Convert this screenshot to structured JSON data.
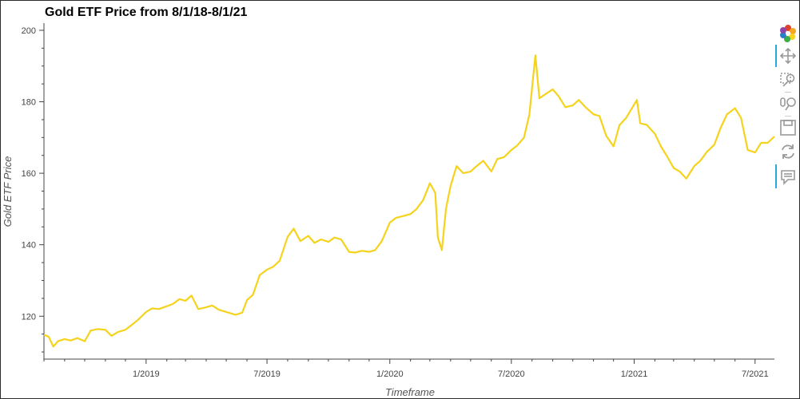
{
  "chart_data": {
    "type": "line",
    "title": "Gold ETF Price from 8/1/18-8/1/21",
    "xlabel": "Timeframe",
    "ylabel": "Gold ETF Price",
    "x_tick_labels": [
      "1/2019",
      "7/2019",
      "1/2020",
      "7/2020",
      "1/2021",
      "7/2021"
    ],
    "x_tick_dates": [
      "2019-01-01",
      "2019-07-01",
      "2020-01-01",
      "2020-07-01",
      "2021-01-01",
      "2021-07-01"
    ],
    "y_ticks": [
      120,
      140,
      160,
      180,
      200
    ],
    "xlim": [
      "2018-08-01",
      "2021-07-30"
    ],
    "ylim": [
      108,
      202
    ],
    "grid": false,
    "line_color": "#f5d31c",
    "series": [
      {
        "x": [
          "2018-08-01",
          "2018-08-08",
          "2018-08-15",
          "2018-08-22",
          "2018-09-01",
          "2018-09-10",
          "2018-09-20",
          "2018-10-01",
          "2018-10-10",
          "2018-10-20",
          "2018-11-01",
          "2018-11-10",
          "2018-11-20",
          "2018-12-01",
          "2018-12-10",
          "2018-12-20",
          "2019-01-01",
          "2019-01-10",
          "2019-01-20",
          "2019-02-01",
          "2019-02-10",
          "2019-02-20",
          "2019-03-01",
          "2019-03-10",
          "2019-03-20",
          "2019-04-01",
          "2019-04-10",
          "2019-04-20",
          "2019-05-01",
          "2019-05-15",
          "2019-05-25",
          "2019-06-01",
          "2019-06-10",
          "2019-06-20",
          "2019-07-01",
          "2019-07-10",
          "2019-07-20",
          "2019-08-01",
          "2019-08-10",
          "2019-08-20",
          "2019-09-01",
          "2019-09-10",
          "2019-09-20",
          "2019-10-01",
          "2019-10-10",
          "2019-10-20",
          "2019-11-01",
          "2019-11-10",
          "2019-11-20",
          "2019-12-01",
          "2019-12-10",
          "2019-12-20",
          "2020-01-01",
          "2020-01-10",
          "2020-01-20",
          "2020-02-01",
          "2020-02-10",
          "2020-02-20",
          "2020-03-01",
          "2020-03-09",
          "2020-03-13",
          "2020-03-19",
          "2020-03-25",
          "2020-04-01",
          "2020-04-10",
          "2020-04-20",
          "2020-05-01",
          "2020-05-10",
          "2020-05-20",
          "2020-06-01",
          "2020-06-10",
          "2020-06-20",
          "2020-07-01",
          "2020-07-10",
          "2020-07-20",
          "2020-07-28",
          "2020-08-06",
          "2020-08-12",
          "2020-08-20",
          "2020-09-01",
          "2020-09-10",
          "2020-09-20",
          "2020-10-01",
          "2020-10-10",
          "2020-10-20",
          "2020-11-01",
          "2020-11-10",
          "2020-11-20",
          "2020-12-01",
          "2020-12-10",
          "2020-12-20",
          "2021-01-05",
          "2021-01-10",
          "2021-01-20",
          "2021-02-01",
          "2021-02-10",
          "2021-02-20",
          "2021-03-01",
          "2021-03-10",
          "2021-03-20",
          "2021-04-01",
          "2021-04-10",
          "2021-04-20",
          "2021-05-01",
          "2021-05-10",
          "2021-05-20",
          "2021-06-01",
          "2021-06-10",
          "2021-06-20",
          "2021-07-01",
          "2021-07-10",
          "2021-07-20",
          "2021-07-30"
        ],
        "y": [
          114.8,
          114.3,
          111.5,
          113.0,
          113.6,
          113.2,
          113.9,
          113.0,
          116.0,
          116.4,
          116.2,
          114.5,
          115.6,
          116.2,
          117.5,
          119.0,
          121.2,
          122.2,
          122.0,
          122.8,
          123.4,
          124.8,
          124.3,
          125.8,
          122.0,
          122.5,
          123.0,
          121.8,
          121.2,
          120.4,
          121.0,
          124.5,
          126.0,
          131.5,
          133.0,
          133.8,
          135.5,
          142.2,
          144.5,
          141.0,
          142.5,
          140.5,
          141.5,
          140.8,
          142.0,
          141.5,
          138.0,
          137.8,
          138.3,
          138.0,
          138.5,
          141.0,
          146.2,
          147.5,
          148.0,
          148.6,
          150.0,
          152.5,
          157.2,
          154.5,
          142.0,
          138.5,
          150.0,
          156.5,
          162.0,
          160.0,
          160.5,
          162.0,
          163.5,
          160.5,
          164.0,
          164.5,
          166.5,
          167.8,
          170.0,
          176.5,
          193.0,
          181.0,
          182.0,
          183.5,
          181.5,
          178.5,
          179.0,
          180.5,
          178.5,
          176.5,
          176.0,
          170.5,
          167.5,
          173.5,
          175.5,
          180.5,
          174.0,
          173.5,
          171.0,
          167.5,
          164.5,
          161.5,
          160.5,
          158.5,
          162.0,
          163.5,
          166.0,
          168.0,
          172.5,
          176.5,
          178.2,
          175.5,
          166.5,
          165.8,
          168.5,
          168.5,
          170.3
        ]
      }
    ]
  },
  "toolbar": {
    "tools": [
      "bokeh-logo-icon",
      "pan-icon",
      "box-zoom-icon",
      "wheel-zoom-icon",
      "save-icon",
      "reset-icon",
      "hover-icon"
    ]
  }
}
